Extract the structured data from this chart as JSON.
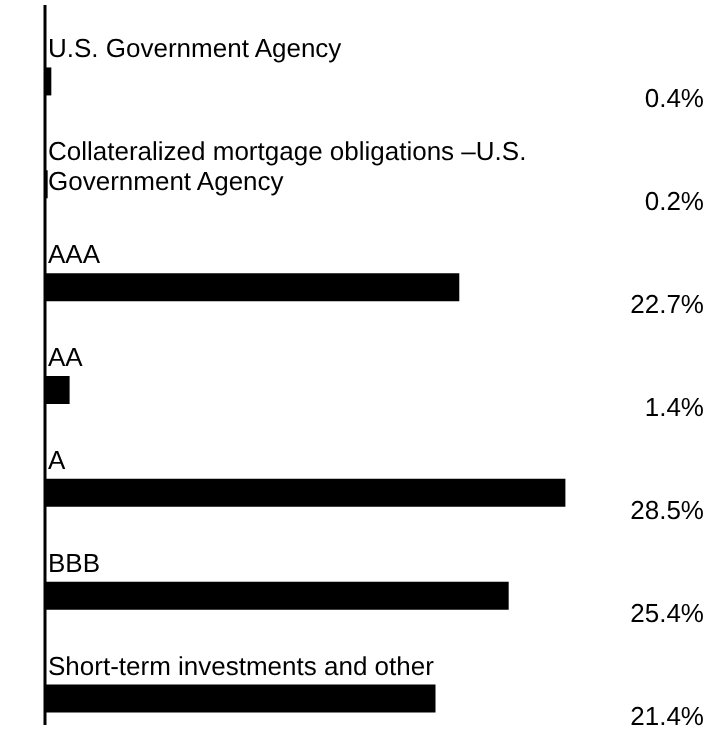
{
  "chart_data": {
    "type": "bar",
    "orientation": "horizontal",
    "tick_labels": false,
    "categories": [
      "U.S. Government Agency",
      "Collateralized mortgage obligations –U.S. Government Agency",
      "AAA",
      "AA",
      "A",
      "BBB",
      "Short-term investments and other"
    ],
    "values": [
      0.4,
      0.2,
      22.7,
      1.4,
      28.5,
      25.4,
      21.4
    ],
    "value_labels": [
      "0.4%",
      "0.2%",
      "22.7%",
      "1.4%",
      "28.5%",
      "25.4%",
      "21.4%"
    ],
    "color": "#000000"
  }
}
